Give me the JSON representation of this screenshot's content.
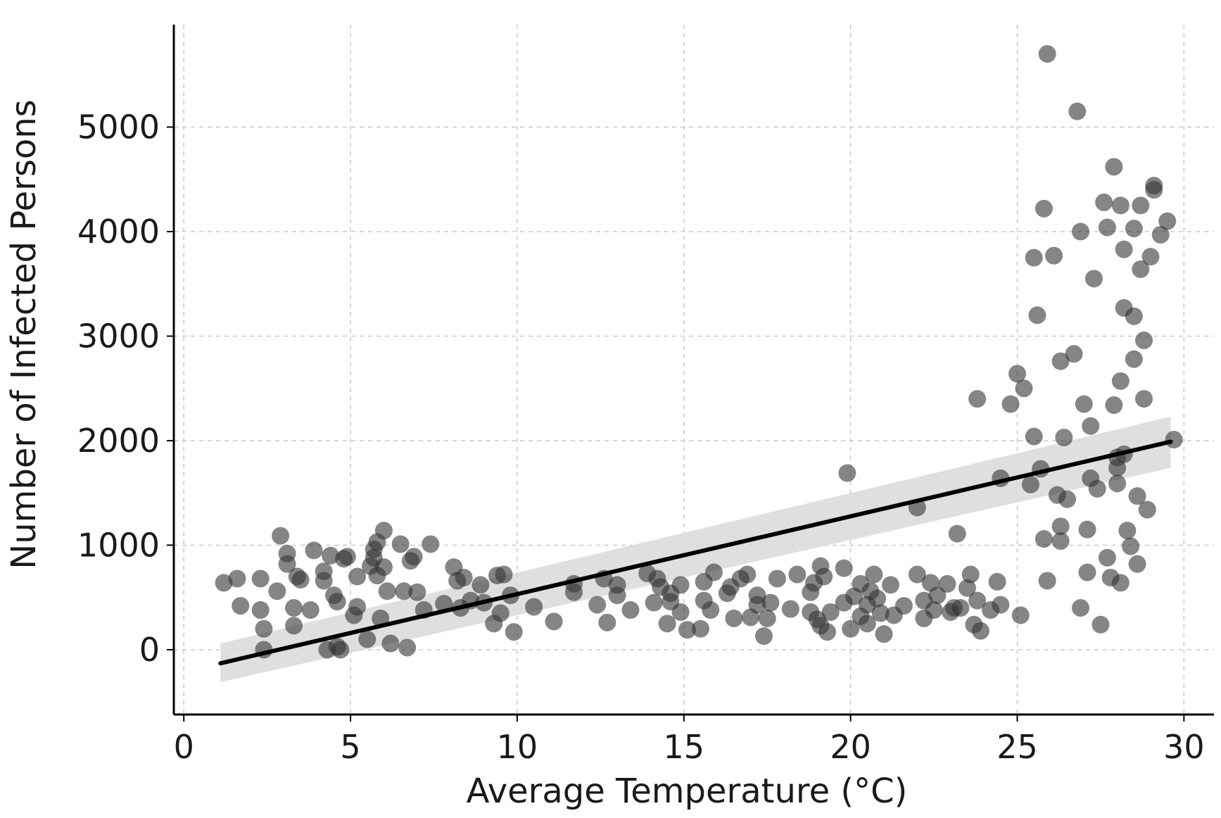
{
  "chart_data": {
    "type": "scatter",
    "title": "",
    "xlabel": "Average Temperature (°C)",
    "ylabel": "Number of Infected Persons",
    "xlim": [
      -0.3,
      30.9
    ],
    "ylim": [
      -620,
      5980
    ],
    "xticks": [
      0,
      5,
      10,
      15,
      20,
      25,
      30
    ],
    "yticks": [
      0,
      1000,
      2000,
      3000,
      4000,
      5000
    ],
    "grid": true,
    "point_color": "#333333",
    "point_opacity": 0.6,
    "regression": {
      "x_start": 1.1,
      "y_start": -130,
      "x_end": 29.6,
      "y_end": 1990,
      "band_start": [
        -310,
        60
      ],
      "band_end": [
        1740,
        2230
      ],
      "line_color": "#000000",
      "band_color": "#d9d9d9"
    },
    "points": [
      [
        1.2,
        640
      ],
      [
        1.6,
        680
      ],
      [
        1.7,
        420
      ],
      [
        2.3,
        680
      ],
      [
        2.3,
        380
      ],
      [
        2.4,
        200
      ],
      [
        2.4,
        0
      ],
      [
        2.8,
        560
      ],
      [
        2.9,
        1090
      ],
      [
        3.1,
        920
      ],
      [
        3.1,
        820
      ],
      [
        3.3,
        400
      ],
      [
        3.3,
        230
      ],
      [
        3.4,
        700
      ],
      [
        3.5,
        670
      ],
      [
        3.8,
        380
      ],
      [
        3.9,
        950
      ],
      [
        4.2,
        750
      ],
      [
        4.2,
        660
      ],
      [
        4.3,
        0
      ],
      [
        4.4,
        900
      ],
      [
        4.5,
        520
      ],
      [
        4.6,
        30
      ],
      [
        4.6,
        460
      ],
      [
        4.7,
        0
      ],
      [
        4.8,
        870
      ],
      [
        4.9,
        890
      ],
      [
        5.1,
        330
      ],
      [
        5.2,
        410
      ],
      [
        5.2,
        700
      ],
      [
        5.5,
        100
      ],
      [
        5.6,
        800
      ],
      [
        5.7,
        960
      ],
      [
        5.7,
        880
      ],
      [
        5.8,
        710
      ],
      [
        5.8,
        1030
      ],
      [
        5.9,
        300
      ],
      [
        6.0,
        1140
      ],
      [
        6.0,
        790
      ],
      [
        6.1,
        560
      ],
      [
        6.2,
        60
      ],
      [
        6.5,
        1010
      ],
      [
        6.6,
        560
      ],
      [
        6.7,
        20
      ],
      [
        6.8,
        850
      ],
      [
        6.9,
        890
      ],
      [
        7.0,
        550
      ],
      [
        7.2,
        380
      ],
      [
        7.4,
        1010
      ],
      [
        7.8,
        440
      ],
      [
        8.1,
        790
      ],
      [
        8.2,
        660
      ],
      [
        8.3,
        400
      ],
      [
        8.4,
        690
      ],
      [
        8.6,
        470
      ],
      [
        8.9,
        620
      ],
      [
        9.0,
        450
      ],
      [
        9.3,
        250
      ],
      [
        9.4,
        710
      ],
      [
        9.5,
        350
      ],
      [
        9.6,
        720
      ],
      [
        9.8,
        520
      ],
      [
        9.9,
        170
      ],
      [
        10.5,
        410
      ],
      [
        11.1,
        270
      ],
      [
        11.7,
        630
      ],
      [
        11.7,
        550
      ],
      [
        12.4,
        430
      ],
      [
        12.6,
        680
      ],
      [
        12.7,
        260
      ],
      [
        13.0,
        620
      ],
      [
        13.0,
        520
      ],
      [
        13.4,
        380
      ],
      [
        13.9,
        730
      ],
      [
        14.1,
        450
      ],
      [
        14.2,
        680
      ],
      [
        14.3,
        600
      ],
      [
        14.5,
        250
      ],
      [
        14.6,
        540
      ],
      [
        14.6,
        460
      ],
      [
        14.9,
        620
      ],
      [
        14.9,
        360
      ],
      [
        15.1,
        190
      ],
      [
        15.5,
        200
      ],
      [
        15.6,
        650
      ],
      [
        15.6,
        470
      ],
      [
        15.8,
        380
      ],
      [
        15.9,
        740
      ],
      [
        16.3,
        540
      ],
      [
        16.4,
        600
      ],
      [
        16.5,
        300
      ],
      [
        16.7,
        680
      ],
      [
        16.9,
        720
      ],
      [
        17.0,
        310
      ],
      [
        17.2,
        520
      ],
      [
        17.2,
        430
      ],
      [
        17.4,
        130
      ],
      [
        17.5,
        300
      ],
      [
        17.6,
        450
      ],
      [
        17.8,
        680
      ],
      [
        18.2,
        390
      ],
      [
        18.4,
        720
      ],
      [
        18.8,
        360
      ],
      [
        18.8,
        550
      ],
      [
        18.9,
        640
      ],
      [
        19.0,
        290
      ],
      [
        19.1,
        800
      ],
      [
        19.1,
        230
      ],
      [
        19.2,
        700
      ],
      [
        19.3,
        170
      ],
      [
        19.4,
        360
      ],
      [
        19.8,
        450
      ],
      [
        19.8,
        780
      ],
      [
        19.9,
        1690
      ],
      [
        20.0,
        200
      ],
      [
        20.1,
        510
      ],
      [
        20.3,
        630
      ],
      [
        20.3,
        320
      ],
      [
        20.5,
        250
      ],
      [
        20.5,
        430
      ],
      [
        20.6,
        560
      ],
      [
        20.7,
        720
      ],
      [
        20.8,
        490
      ],
      [
        20.9,
        350
      ],
      [
        21.0,
        150
      ],
      [
        21.2,
        620
      ],
      [
        21.3,
        330
      ],
      [
        21.6,
        420
      ],
      [
        22.0,
        1360
      ],
      [
        22.0,
        720
      ],
      [
        22.2,
        300
      ],
      [
        22.2,
        470
      ],
      [
        22.4,
        640
      ],
      [
        22.5,
        380
      ],
      [
        22.6,
        520
      ],
      [
        22.9,
        630
      ],
      [
        23.0,
        360
      ],
      [
        23.1,
        400
      ],
      [
        23.2,
        1110
      ],
      [
        23.3,
        400
      ],
      [
        23.5,
        590
      ],
      [
        23.6,
        720
      ],
      [
        23.7,
        240
      ],
      [
        23.8,
        470
      ],
      [
        23.8,
        2400
      ],
      [
        23.9,
        180
      ],
      [
        24.2,
        380
      ],
      [
        24.4,
        650
      ],
      [
        24.5,
        1640
      ],
      [
        24.5,
        430
      ],
      [
        24.8,
        2350
      ],
      [
        25.0,
        2640
      ],
      [
        25.1,
        330
      ],
      [
        25.2,
        2500
      ],
      [
        25.4,
        1580
      ],
      [
        25.5,
        2040
      ],
      [
        25.5,
        3750
      ],
      [
        25.6,
        3200
      ],
      [
        25.7,
        1730
      ],
      [
        25.8,
        4220
      ],
      [
        25.8,
        1060
      ],
      [
        25.9,
        5700
      ],
      [
        25.9,
        660
      ],
      [
        26.1,
        3770
      ],
      [
        26.2,
        1480
      ],
      [
        26.3,
        2760
      ],
      [
        26.3,
        1180
      ],
      [
        26.3,
        1040
      ],
      [
        26.4,
        2030
      ],
      [
        26.5,
        1440
      ],
      [
        26.7,
        2830
      ],
      [
        26.8,
        5150
      ],
      [
        26.9,
        400
      ],
      [
        26.9,
        4000
      ],
      [
        27.0,
        2350
      ],
      [
        27.1,
        740
      ],
      [
        27.1,
        1150
      ],
      [
        27.2,
        2140
      ],
      [
        27.2,
        1640
      ],
      [
        27.3,
        3550
      ],
      [
        27.4,
        1540
      ],
      [
        27.5,
        240
      ],
      [
        27.6,
        4280
      ],
      [
        27.7,
        880
      ],
      [
        27.7,
        4040
      ],
      [
        27.9,
        2340
      ],
      [
        27.9,
        4620
      ],
      [
        28.0,
        1840
      ],
      [
        28.0,
        1740
      ],
      [
        28.0,
        1590
      ],
      [
        28.1,
        4250
      ],
      [
        28.1,
        2570
      ],
      [
        28.2,
        3830
      ],
      [
        28.2,
        3270
      ],
      [
        28.3,
        1140
      ],
      [
        28.4,
        990
      ],
      [
        28.5,
        4030
      ],
      [
        28.5,
        3190
      ],
      [
        28.5,
        2780
      ],
      [
        28.6,
        1470
      ],
      [
        28.6,
        820
      ],
      [
        28.7,
        3640
      ],
      [
        28.7,
        4250
      ],
      [
        28.8,
        2960
      ],
      [
        28.8,
        2400
      ],
      [
        28.9,
        1340
      ],
      [
        29.0,
        3760
      ],
      [
        29.1,
        4440
      ],
      [
        29.1,
        4400
      ],
      [
        29.3,
        3970
      ],
      [
        29.5,
        4100
      ],
      [
        29.7,
        2010
      ],
      [
        28.2,
        1870
      ],
      [
        27.8,
        690
      ],
      [
        28.1,
        640
      ]
    ]
  }
}
